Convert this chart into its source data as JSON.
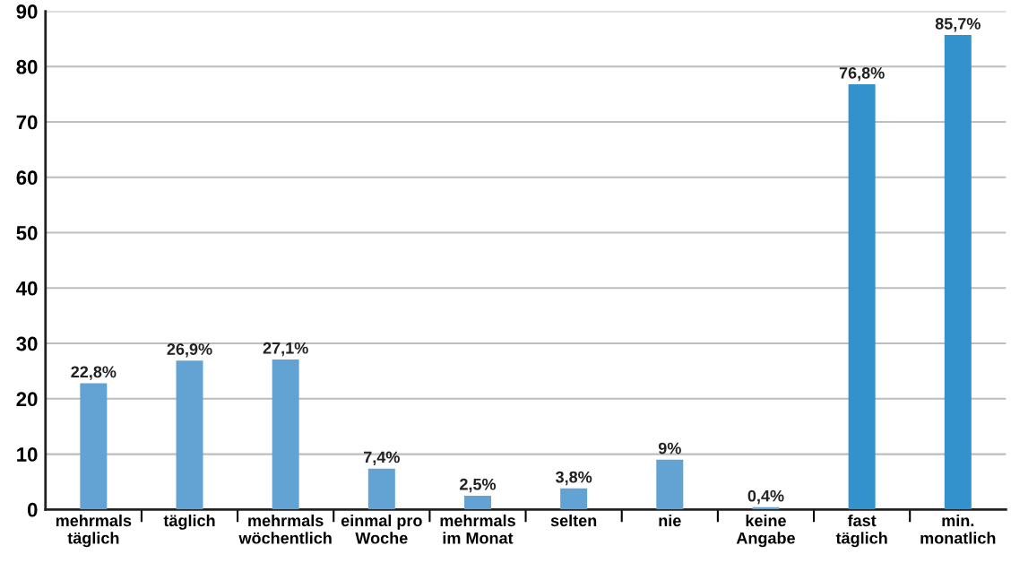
{
  "chart_data": {
    "type": "bar",
    "categories": [
      "mehrmals\ntäglich",
      "täglich",
      "mehrmals\nwöchentlich",
      "einmal pro\nWoche",
      "mehrmals\nim Monat",
      "selten",
      "nie",
      "keine\nAngabe",
      "fast\ntäglich",
      "min.\nmonatlich"
    ],
    "values": [
      22.8,
      26.9,
      27.1,
      7.4,
      2.5,
      3.8,
      9,
      0.4,
      76.8,
      85.7
    ],
    "colors": [
      "#62a3d3",
      "#62a3d3",
      "#62a3d3",
      "#62a3d3",
      "#62a3d3",
      "#62a3d3",
      "#62a3d3",
      "#62a3d3",
      "#3391cb",
      "#3391cb"
    ],
    "value_labels": [
      "22,8%",
      "26,9%",
      "27,1%",
      "7,4%",
      "2,5%",
      "3,8%",
      "9%",
      "0,4%",
      "76,8%",
      "85,7%"
    ],
    "ylim": [
      0,
      90
    ],
    "yticks": [
      0,
      10,
      20,
      30,
      40,
      50,
      60,
      70,
      80,
      90
    ],
    "grid": "y",
    "legend": false
  }
}
